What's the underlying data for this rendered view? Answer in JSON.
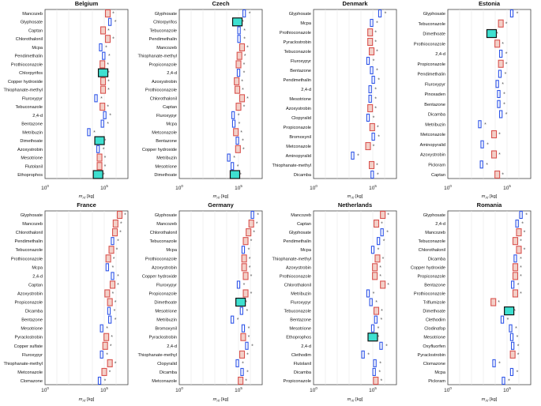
{
  "figure": {
    "x_axis_label": "m_AI [kg]",
    "x_ticks": [
      "10^0",
      "10^5"
    ],
    "legend": []
  },
  "colors": {
    "red_box": "#d9534f",
    "red_box_fill": "#f3d0c8",
    "blue_box": "#2f55e8",
    "cyan_box_fill": "#3ee0d0",
    "dot": "#555555",
    "grid": "#e6e6e6",
    "axis": "#444444"
  },
  "chart_data": [
    {
      "type": "scatter",
      "title": "Belgium",
      "xscale": "log",
      "xlim": [
        1,
        10000000
      ],
      "xlabel": "m_AI [kg]",
      "categories": [
        "Mancozeb",
        "Glyphosate",
        "Captan",
        "Chlorothalonil",
        "Mcpa",
        "Pendimethalin",
        "Prothioconazole",
        "Chlorpyrifos",
        "Copper hydroxide",
        "Thiophanate-methyl",
        "Fluroxypyr",
        "Tebuconazole",
        "2,4-d",
        "Bentazone",
        "Metribuzin",
        "Dimethoate",
        "Azoxystrobin",
        "Mesotrione",
        "Flutolanil",
        "Ethoprophos"
      ],
      "points": [
        {
          "v": 200000,
          "m": "red"
        },
        {
          "v": 300000,
          "m": "blue"
        },
        {
          "v": 80000,
          "m": "red"
        },
        {
          "v": 200000,
          "m": "red"
        },
        {
          "v": 50000,
          "m": "blue"
        },
        {
          "v": 90000,
          "m": "blue"
        },
        {
          "v": 70000,
          "m": "red"
        },
        {
          "v": 80000,
          "m": "cyan"
        },
        {
          "v": 80000,
          "m": "red"
        },
        {
          "v": 80000,
          "m": "red"
        },
        {
          "v": 20000,
          "m": "blue"
        },
        {
          "v": 70000,
          "m": "red"
        },
        {
          "v": 110000,
          "m": "blue"
        },
        {
          "v": 70000,
          "m": "blue"
        },
        {
          "v": 5000,
          "m": "blue"
        },
        {
          "v": 40000,
          "m": "cyan"
        },
        {
          "v": 30000,
          "m": "blue"
        },
        {
          "v": 40000,
          "m": "red"
        },
        {
          "v": 40000,
          "m": "red"
        },
        {
          "v": 30000,
          "m": "cyan"
        }
      ]
    },
    {
      "type": "scatter",
      "title": "Czech",
      "xscale": "log",
      "xlim": [
        1,
        10000000
      ],
      "xlabel": "m_AI [kg]",
      "categories": [
        "Glyphosate",
        "Chlorpyrifos",
        "Tebuconazole",
        "Pendimethalin",
        "Mancozeb",
        "Thiophanate-methyl",
        "Propiconazole",
        "2,4-d",
        "Azoxystrobin",
        "Prothioconazole",
        "Chlorothalonil",
        "Captan",
        "Fluroxypyr",
        "Mcpa",
        "Metconazole",
        "Bentazone",
        "Copper hydroxide",
        "Metribuzin",
        "Mesotrione",
        "Dimethoate"
      ],
      "points": [
        {
          "v": 300000,
          "m": "blue"
        },
        {
          "v": 80000,
          "m": "cyan"
        },
        {
          "v": 110000,
          "m": "blue"
        },
        {
          "v": 110000,
          "m": "blue"
        },
        {
          "v": 200000,
          "m": "red"
        },
        {
          "v": 120000,
          "m": "red"
        },
        {
          "v": 100000,
          "m": "red"
        },
        {
          "v": 100000,
          "m": "blue"
        },
        {
          "v": 70000,
          "m": "red"
        },
        {
          "v": 80000,
          "m": "red"
        },
        {
          "v": 200000,
          "m": "red"
        },
        {
          "v": 100000,
          "m": "red"
        },
        {
          "v": 35000,
          "m": "blue"
        },
        {
          "v": 40000,
          "m": "blue"
        },
        {
          "v": 60000,
          "m": "red"
        },
        {
          "v": 80000,
          "m": "blue"
        },
        {
          "v": 90000,
          "m": "red"
        },
        {
          "v": 15000,
          "m": "blue"
        },
        {
          "v": 30000,
          "m": "blue"
        },
        {
          "v": 50000,
          "m": "cyan"
        }
      ]
    },
    {
      "type": "scatter",
      "title": "Denmark",
      "xscale": "log",
      "xlim": [
        1,
        10000000
      ],
      "xlabel": "m_AI [kg]",
      "categories": [
        "Glyphosate",
        "Mcpa",
        "Prothioconazole",
        "Pyraclostrobin",
        "Tebuconazole",
        "Fluroxypyr",
        "Bentazone",
        "Pendimethalin",
        "2,4-d",
        "Mesotrione",
        "Azoxystrobin",
        "Clopyralid",
        "Propiconazole",
        "Bromoxynil",
        "Metconazole",
        "Aminopyralid",
        "Thiophanate-methyl",
        "Dicamba"
      ],
      "points": [
        {
          "v": 400000,
          "m": "blue"
        },
        {
          "v": 80000,
          "m": "blue"
        },
        {
          "v": 60000,
          "m": "red"
        },
        {
          "v": 60000,
          "m": "red"
        },
        {
          "v": 80000,
          "m": "red"
        },
        {
          "v": 40000,
          "m": "blue"
        },
        {
          "v": 80000,
          "m": "blue"
        },
        {
          "v": 110000,
          "m": "blue"
        },
        {
          "v": 60000,
          "m": "blue"
        },
        {
          "v": 60000,
          "m": "blue"
        },
        {
          "v": 60000,
          "m": "red"
        },
        {
          "v": 40000,
          "m": "blue"
        },
        {
          "v": 90000,
          "m": "red"
        },
        {
          "v": 110000,
          "m": "blue"
        },
        {
          "v": 40000,
          "m": "red"
        },
        {
          "v": 2000,
          "m": "blue"
        },
        {
          "v": 80000,
          "m": "red"
        },
        {
          "v": 90000,
          "m": "blue"
        }
      ]
    },
    {
      "type": "scatter",
      "title": "Estonia",
      "xscale": "log",
      "xlim": [
        1,
        10000000
      ],
      "xlabel": "m_AI [kg]",
      "categories": [
        "Glyphosate",
        "Tebuconazole",
        "Dimethoate",
        "Prothioconazole",
        "2,4-d",
        "Propiconazole",
        "Pendimethalin",
        "Fluroxypyr",
        "Pinoxaden",
        "Bentazone",
        "Dicamba",
        "Metribuzin",
        "Metconazole",
        "Aminopyralid",
        "Azoxystrobin",
        "Picloram",
        "Captan"
      ],
      "points": [
        {
          "v": 250000,
          "m": "blue"
        },
        {
          "v": 30000,
          "m": "red"
        },
        {
          "v": 5000,
          "m": "cyan"
        },
        {
          "v": 15000,
          "m": "red"
        },
        {
          "v": 30000,
          "m": "blue"
        },
        {
          "v": 30000,
          "m": "red"
        },
        {
          "v": 25000,
          "m": "blue"
        },
        {
          "v": 15000,
          "m": "blue"
        },
        {
          "v": 20000,
          "m": "blue"
        },
        {
          "v": 20000,
          "m": "blue"
        },
        {
          "v": 30000,
          "m": "blue"
        },
        {
          "v": 500,
          "m": "blue"
        },
        {
          "v": 8000,
          "m": "red"
        },
        {
          "v": 800,
          "m": "blue"
        },
        {
          "v": 8000,
          "m": "red"
        },
        {
          "v": 700,
          "m": "blue"
        },
        {
          "v": 15000,
          "m": "red"
        }
      ]
    },
    {
      "type": "scatter",
      "title": "France",
      "xscale": "log",
      "xlim": [
        1,
        10000000
      ],
      "xlabel": "m_AI [kg]",
      "categories": [
        "Glyphosate",
        "Mancozeb",
        "Chlorothalonil",
        "Pendimethalin",
        "Tebuconazole",
        "Prothioconazole",
        "Mcpa",
        "2,4-d",
        "Captan",
        "Azoxystrobin",
        "Propiconazole",
        "Dicamba",
        "Bentazone",
        "Mesotrione",
        "Pyraclostrobin",
        "Copper sulfate",
        "Fluroxypyr",
        "Thiophanate-methyl",
        "Metconazole",
        "Clomazone"
      ],
      "points": [
        {
          "v": 2000000,
          "m": "red"
        },
        {
          "v": 900000,
          "m": "red"
        },
        {
          "v": 800000,
          "m": "red"
        },
        {
          "v": 500000,
          "m": "blue"
        },
        {
          "v": 400000,
          "m": "red"
        },
        {
          "v": 220000,
          "m": "red"
        },
        {
          "v": 180000,
          "m": "blue"
        },
        {
          "v": 500000,
          "m": "blue"
        },
        {
          "v": 500000,
          "m": "red"
        },
        {
          "v": 180000,
          "m": "red"
        },
        {
          "v": 300000,
          "m": "red"
        },
        {
          "v": 250000,
          "m": "blue"
        },
        {
          "v": 300000,
          "m": "blue"
        },
        {
          "v": 60000,
          "m": "blue"
        },
        {
          "v": 150000,
          "m": "red"
        },
        {
          "v": 120000,
          "m": "red"
        },
        {
          "v": 60000,
          "m": "blue"
        },
        {
          "v": 300000,
          "m": "red"
        },
        {
          "v": 100000,
          "m": "red"
        },
        {
          "v": 40000,
          "m": "blue"
        }
      ]
    },
    {
      "type": "scatter",
      "title": "Germany",
      "xscale": "log",
      "xlim": [
        1,
        10000000
      ],
      "xlabel": "m_AI [kg]",
      "categories": [
        "Glyphosate",
        "Mancozeb",
        "Chlorothalonil",
        "Tebuconazole",
        "Mcpa",
        "Prothioconazole",
        "Azoxystrobin",
        "Copper hydroxide",
        "Fluroxypyr",
        "Propiconazole",
        "Dimethoate",
        "Mesotrione",
        "Metribuzin",
        "Bromoxynil",
        "Pyraclostrobin",
        "2,4-d",
        "Thiophanate-methyl",
        "Clopyralid",
        "Dicamba",
        "Metconazole"
      ],
      "points": [
        {
          "v": 1500000,
          "m": "blue"
        },
        {
          "v": 1200000,
          "m": "red"
        },
        {
          "v": 700000,
          "m": "red"
        },
        {
          "v": 400000,
          "m": "red"
        },
        {
          "v": 250000,
          "m": "blue"
        },
        {
          "v": 300000,
          "m": "red"
        },
        {
          "v": 300000,
          "m": "red"
        },
        {
          "v": 400000,
          "m": "red"
        },
        {
          "v": 100000,
          "m": "blue"
        },
        {
          "v": 400000,
          "m": "red"
        },
        {
          "v": 150000,
          "m": "cyan"
        },
        {
          "v": 180000,
          "m": "blue"
        },
        {
          "v": 30000,
          "m": "blue"
        },
        {
          "v": 250000,
          "m": "blue"
        },
        {
          "v": 250000,
          "m": "red"
        },
        {
          "v": 500000,
          "m": "blue"
        },
        {
          "v": 200000,
          "m": "red"
        },
        {
          "v": 80000,
          "m": "blue"
        },
        {
          "v": 200000,
          "m": "blue"
        },
        {
          "v": 150000,
          "m": "red"
        }
      ]
    },
    {
      "type": "scatter",
      "title": "Netherlands",
      "xscale": "log",
      "xlim": [
        1,
        10000000
      ],
      "xlabel": "m_AI [kg]",
      "categories": [
        "Mancozeb",
        "Captan",
        "Glyphosate",
        "Pendimethalin",
        "Mcpa",
        "Thiophanate-methyl",
        "Azoxystrobin",
        "Prothioconazole",
        "Chlorothalonil",
        "Metribuzin",
        "Fluroxypyr",
        "Tebuconazole",
        "Bentazone",
        "Mesotrione",
        "Ethoprophos",
        "2,4-d",
        "Clethodim",
        "Flutolanil",
        "Dicamba",
        "Propiconazole"
      ],
      "points": [
        {
          "v": 700000,
          "m": "red"
        },
        {
          "v": 200000,
          "m": "red"
        },
        {
          "v": 600000,
          "m": "blue"
        },
        {
          "v": 300000,
          "m": "blue"
        },
        {
          "v": 100000,
          "m": "blue"
        },
        {
          "v": 250000,
          "m": "red"
        },
        {
          "v": 150000,
          "m": "red"
        },
        {
          "v": 150000,
          "m": "red"
        },
        {
          "v": 700000,
          "m": "red"
        },
        {
          "v": 40000,
          "m": "blue"
        },
        {
          "v": 70000,
          "m": "blue"
        },
        {
          "v": 200000,
          "m": "red"
        },
        {
          "v": 180000,
          "m": "blue"
        },
        {
          "v": 100000,
          "m": "blue"
        },
        {
          "v": 100000,
          "m": "cyan"
        },
        {
          "v": 500000,
          "m": "blue"
        },
        {
          "v": 15000,
          "m": "blue"
        },
        {
          "v": 150000,
          "m": "blue"
        },
        {
          "v": 130000,
          "m": "blue"
        },
        {
          "v": 180000,
          "m": "red"
        }
      ]
    },
    {
      "type": "scatter",
      "title": "Romania",
      "xscale": "log",
      "xlim": [
        1,
        10000000
      ],
      "xlabel": "m_AI [kg]",
      "categories": [
        "Glyphosate",
        "2,4-d",
        "Mancozeb",
        "Tebuconazole",
        "Chlorothalonil",
        "Dicamba",
        "Copper hydroxide",
        "Propiconazole",
        "Bentazone",
        "Prothioconazole",
        "Triflumizole",
        "Dimethoate",
        "Clethodim",
        "Clodinafop",
        "Mesotrione",
        "Oxyfluorfen",
        "Pyraclostrobin",
        "Clomazone",
        "Mcpa",
        "Picloram"
      ],
      "points": [
        {
          "v": 1500000,
          "m": "blue"
        },
        {
          "v": 700000,
          "m": "blue"
        },
        {
          "v": 1000000,
          "m": "red"
        },
        {
          "v": 500000,
          "m": "red"
        },
        {
          "v": 1000000,
          "m": "red"
        },
        {
          "v": 500000,
          "m": "blue"
        },
        {
          "v": 500000,
          "m": "red"
        },
        {
          "v": 500000,
          "m": "red"
        },
        {
          "v": 300000,
          "m": "blue"
        },
        {
          "v": 500000,
          "m": "red"
        },
        {
          "v": 7000,
          "m": "red"
        },
        {
          "v": 150000,
          "m": "cyan"
        },
        {
          "v": 40000,
          "m": "blue"
        },
        {
          "v": 200000,
          "m": "blue"
        },
        {
          "v": 250000,
          "m": "blue"
        },
        {
          "v": 300000,
          "m": "blue"
        },
        {
          "v": 300000,
          "m": "red"
        },
        {
          "v": 8000,
          "m": "blue"
        },
        {
          "v": 250000,
          "m": "blue"
        },
        {
          "v": 50000,
          "m": "blue"
        }
      ]
    }
  ]
}
